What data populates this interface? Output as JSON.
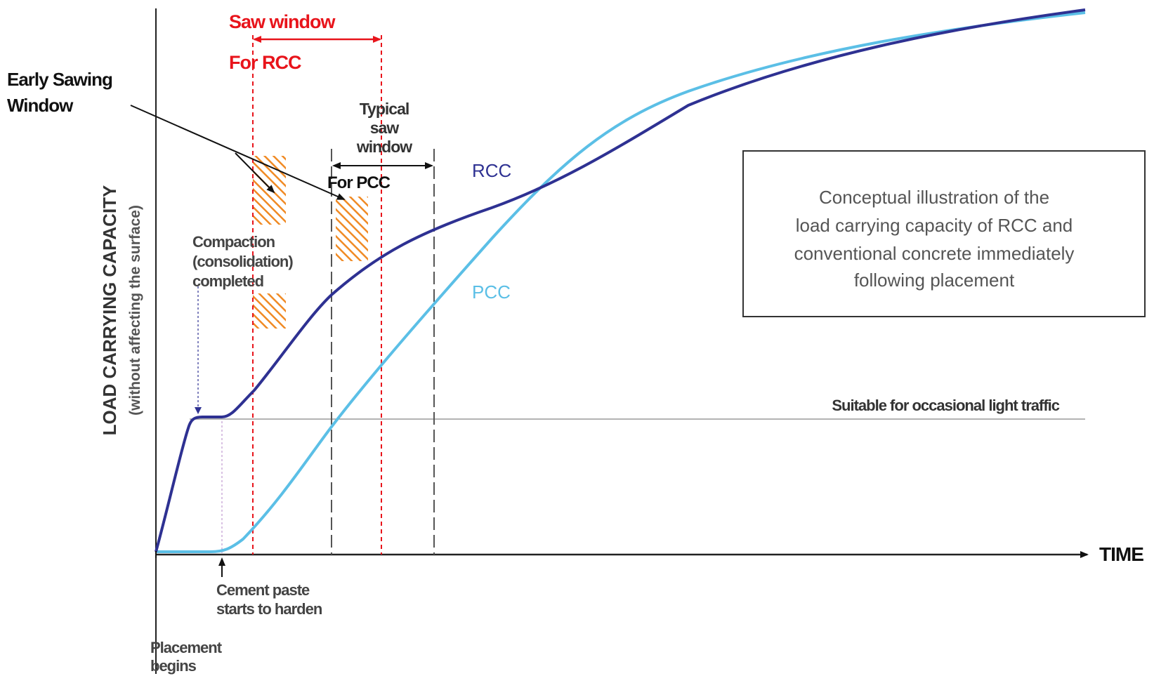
{
  "chart_data": {
    "type": "line",
    "xlabel": "TIME",
    "ylabel": "LOAD CARRYING CAPACITY",
    "ylabel_sub": "(without affecting the surface)",
    "series": [
      {
        "name": "RCC",
        "color": "#2e3192"
      },
      {
        "name": "PCC",
        "color": "#5bbfe6"
      }
    ],
    "threshold": {
      "label": "Suitable for occasional light traffic"
    },
    "saw_window_rcc": {
      "label_line1": "Saw window",
      "label_line2": "For RCC",
      "color": "#e8141b"
    },
    "saw_window_pcc": {
      "label_line1": "Typical",
      "label_line2": "saw",
      "label_line3": "window",
      "label_line4": "For PCC"
    },
    "early_sawing": {
      "label_line1": "Early Sawing",
      "label_line2": "Window",
      "hatch_color": "#f08a24"
    },
    "annotations": {
      "compaction_line1": "Compaction",
      "compaction_line2": "(consolidation)",
      "compaction_line3": "completed",
      "cement_line1": "Cement paste",
      "cement_line2": "starts to harden",
      "placement_line1": "Placement",
      "placement_line2": "begins"
    },
    "note": {
      "line1": "Conceptual illustration of the",
      "line2": "load carrying capacity of RCC and",
      "line3": "conventional concrete immediately",
      "line4": "following placement"
    }
  }
}
